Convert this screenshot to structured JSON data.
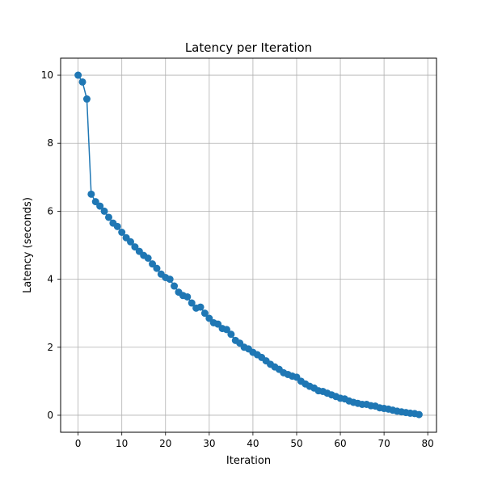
{
  "chart_data": {
    "type": "line",
    "title": "Latency per Iteration",
    "xlabel": "Iteration",
    "ylabel": "Latency (seconds)",
    "xlim": [
      -4,
      82
    ],
    "ylim": [
      -0.5,
      10.5
    ],
    "xticks": [
      0,
      10,
      20,
      30,
      40,
      50,
      60,
      70,
      80
    ],
    "yticks": [
      0,
      2,
      4,
      6,
      8,
      10
    ],
    "grid": true,
    "marker": "circle",
    "color": "#1f77b4",
    "series": [
      {
        "x": [
          0,
          1,
          2,
          3,
          4,
          5,
          6,
          7,
          8,
          9,
          10,
          11,
          12,
          13,
          14,
          15,
          16,
          17,
          18,
          19,
          20,
          21,
          22,
          23,
          24,
          25,
          26,
          27,
          28,
          29,
          30,
          31,
          32,
          33,
          34,
          35,
          36,
          37,
          38,
          39,
          40,
          41,
          42,
          43,
          44,
          45,
          46,
          47,
          48,
          49,
          50,
          51,
          52,
          53,
          54,
          55,
          56,
          57,
          58,
          59,
          60,
          61,
          62,
          63,
          64,
          65,
          66,
          67,
          68,
          69,
          70,
          71,
          72,
          73,
          74,
          75,
          76,
          77,
          78
        ],
        "y": [
          10.0,
          9.8,
          9.3,
          6.5,
          6.28,
          6.15,
          6.0,
          5.82,
          5.65,
          5.55,
          5.38,
          5.22,
          5.1,
          4.95,
          4.82,
          4.7,
          4.62,
          4.45,
          4.32,
          4.15,
          4.05,
          4.0,
          3.8,
          3.62,
          3.52,
          3.48,
          3.3,
          3.15,
          3.18,
          3.0,
          2.85,
          2.72,
          2.68,
          2.55,
          2.52,
          2.38,
          2.2,
          2.12,
          2.0,
          1.95,
          1.85,
          1.78,
          1.7,
          1.6,
          1.5,
          1.42,
          1.35,
          1.25,
          1.2,
          1.15,
          1.12,
          1.0,
          0.92,
          0.85,
          0.8,
          0.72,
          0.7,
          0.65,
          0.6,
          0.55,
          0.5,
          0.48,
          0.42,
          0.38,
          0.35,
          0.32,
          0.32,
          0.28,
          0.27,
          0.22,
          0.2,
          0.18,
          0.15,
          0.12,
          0.1,
          0.08,
          0.06,
          0.05,
          0.02
        ]
      }
    ]
  }
}
